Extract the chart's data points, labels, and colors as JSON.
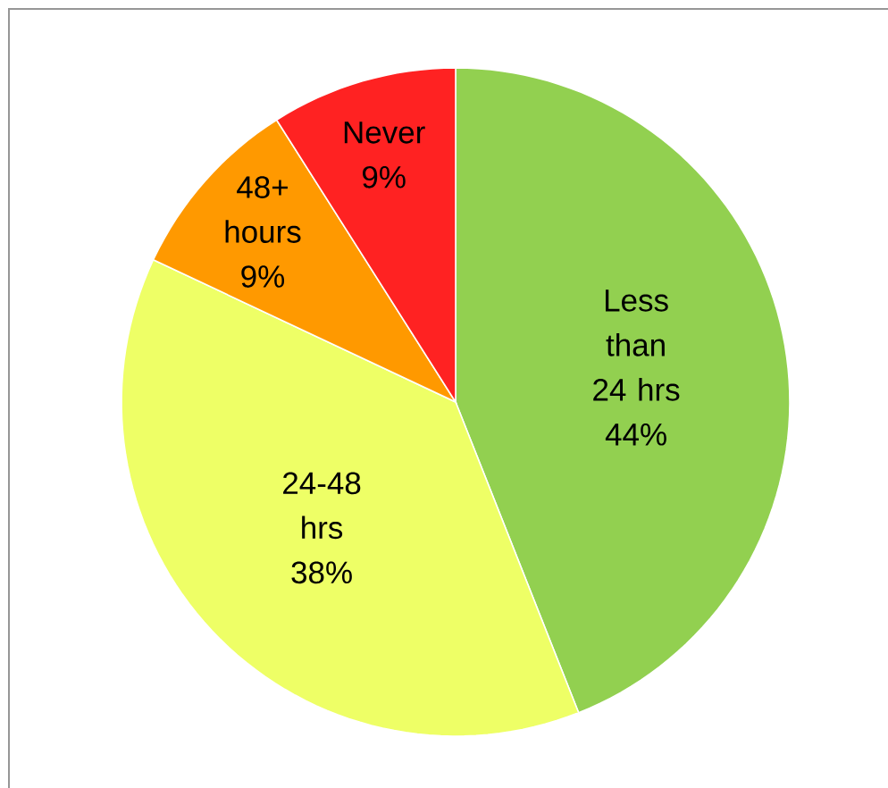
{
  "chart_data": {
    "type": "pie",
    "categories": [
      "Less than 24 hrs",
      "24-48 hrs",
      "48+ hours",
      "Never"
    ],
    "values": [
      44,
      38,
      9,
      9
    ],
    "value_labels": [
      "44%",
      "38%",
      "9%",
      "9%"
    ],
    "colors": [
      "#92d050",
      "#eeff66",
      "#ff9900",
      "#ff2222"
    ],
    "legend": false
  }
}
